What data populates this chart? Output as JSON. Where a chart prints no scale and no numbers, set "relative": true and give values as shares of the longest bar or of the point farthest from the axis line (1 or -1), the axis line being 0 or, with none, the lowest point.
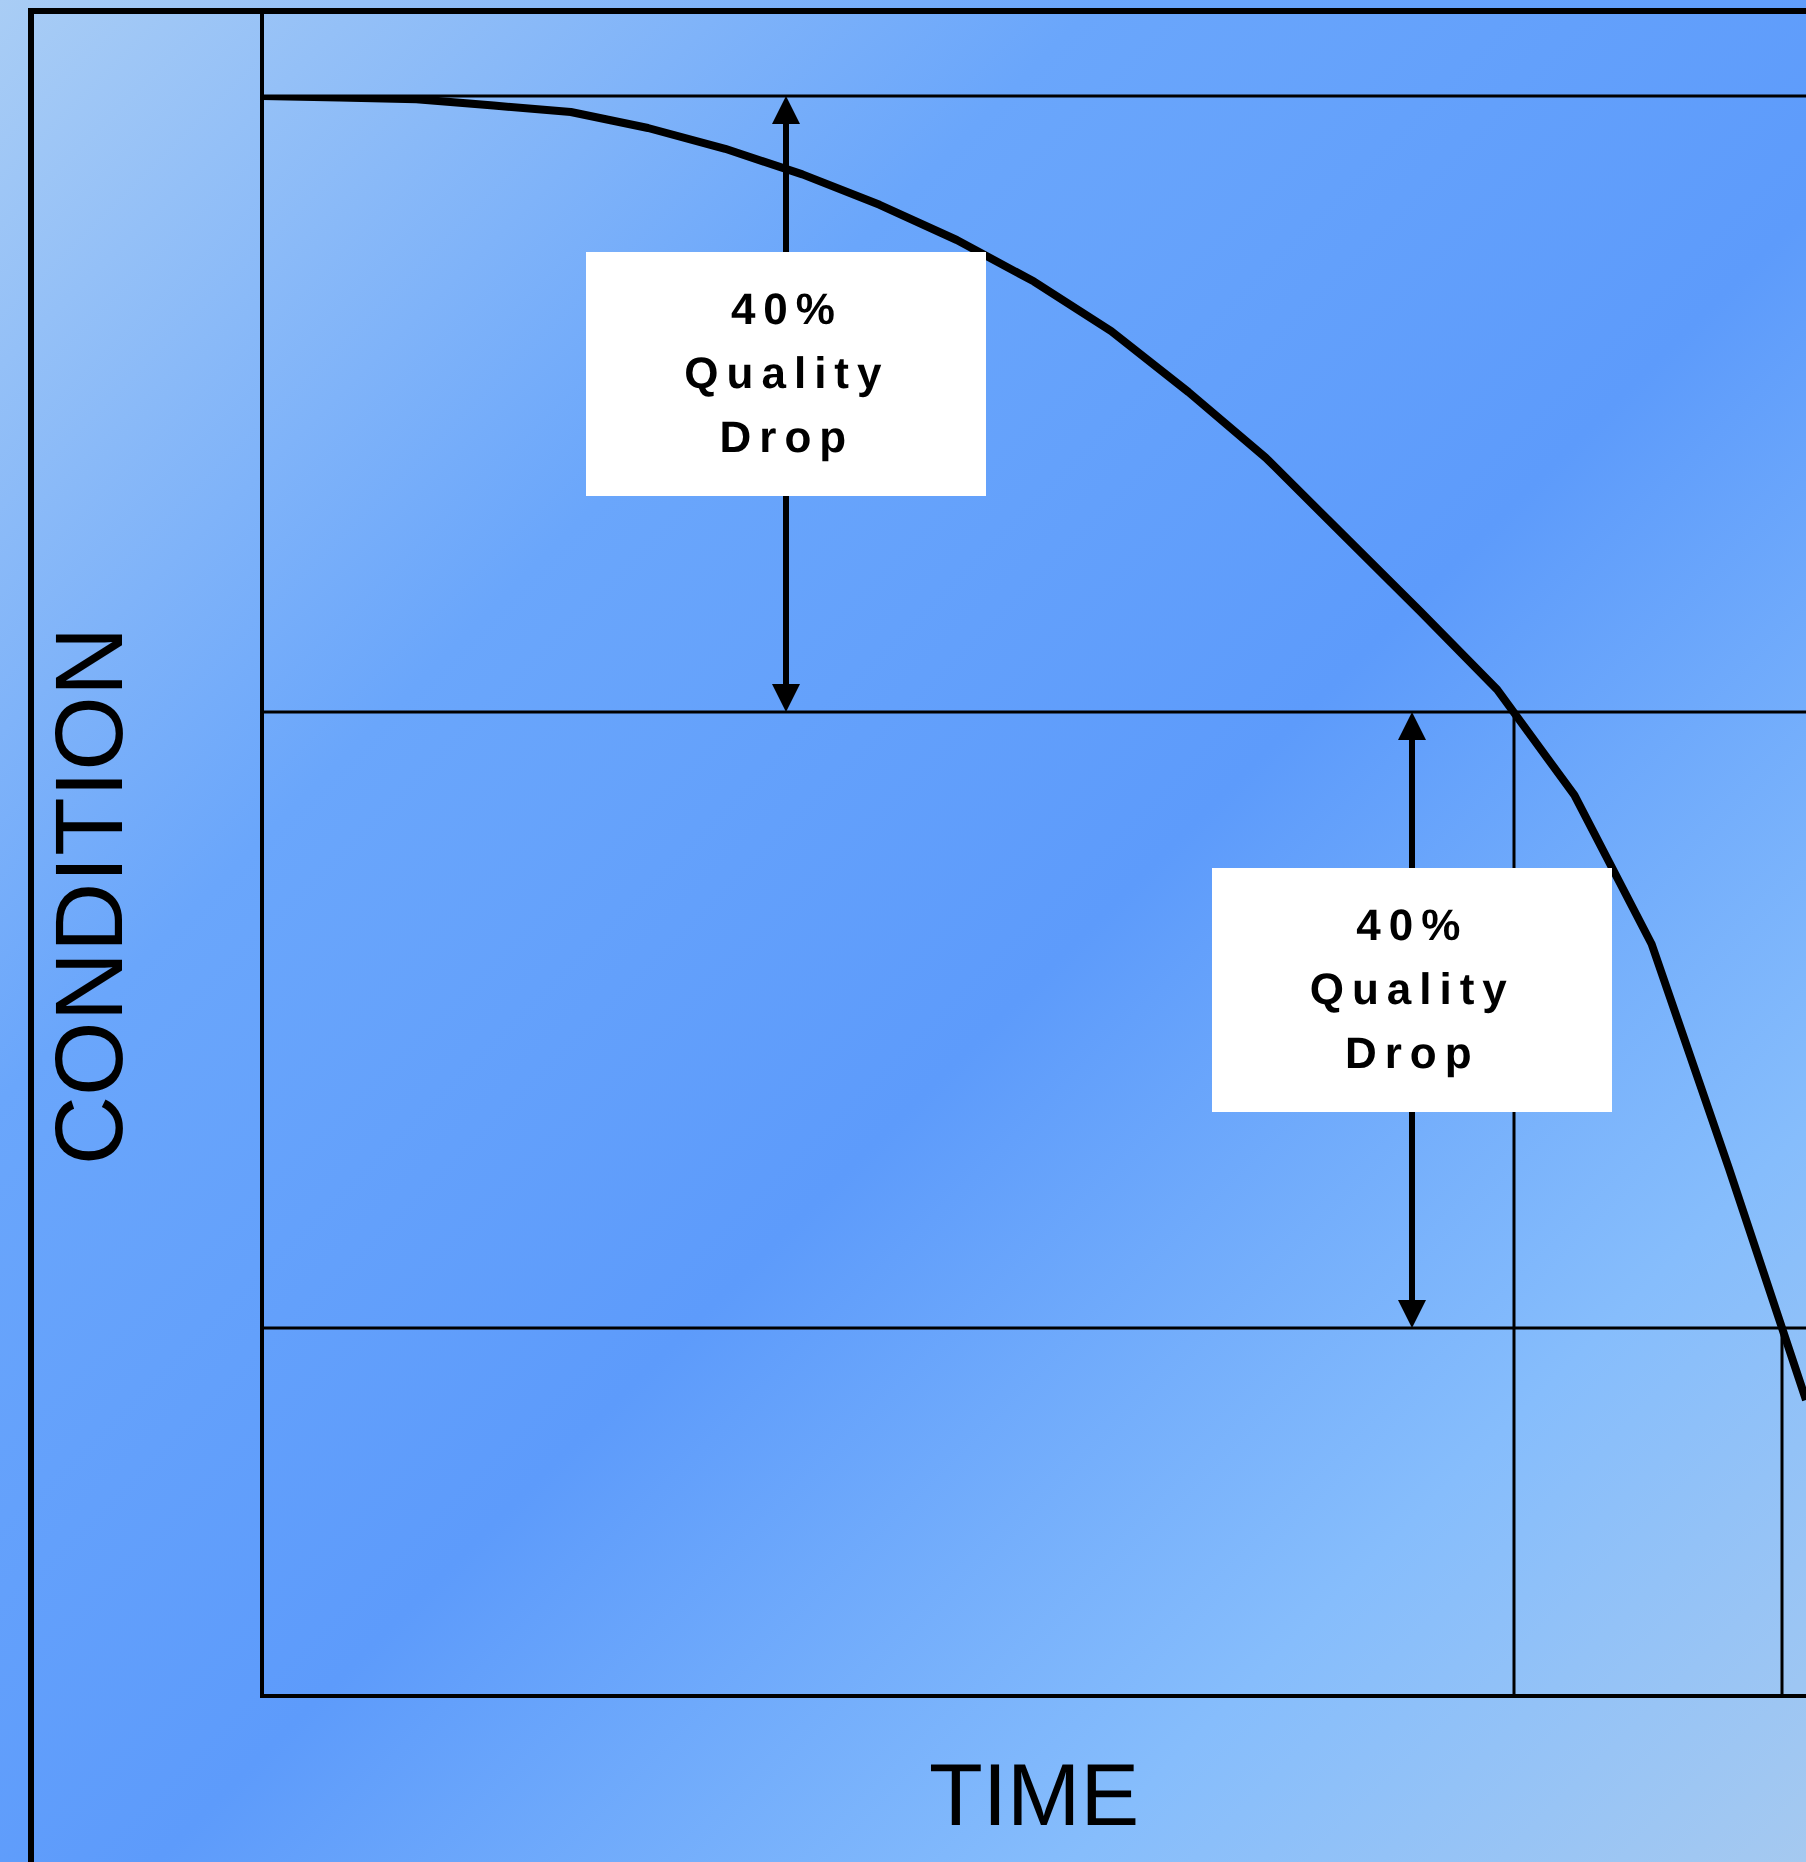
{
  "chart_data": {
    "type": "line",
    "relative": true,
    "xlabel": "TIME",
    "ylabel": "CONDITION",
    "marker": "none",
    "line_style": "solid",
    "categories": [
      null,
      null,
      null,
      null,
      null,
      null,
      null,
      null,
      null,
      null,
      null,
      null,
      null,
      null,
      null,
      null,
      null,
      null,
      null,
      null,
      null
    ],
    "series": [
      {
        "color": "#000000",
        "values": [
          1,
          0.999,
          0.998,
          0.994,
          0.99,
          0.98,
          0.967,
          0.951,
          0.932,
          0.91,
          0.884,
          0.853,
          0.815,
          0.774,
          0.726,
          0.678,
          0.629,
          0.563,
          0.47,
          0.33,
          0.185
        ]
      }
    ],
    "ref_lines": [
      {
        "axis": "y",
        "value": 1
      },
      {
        "axis": "y",
        "value": 0.615
      },
      {
        "axis": "y",
        "value": 0.23
      }
    ],
    "annotations": [
      "40% Quality Drop",
      "40% Quality Drop"
    ]
  }
}
